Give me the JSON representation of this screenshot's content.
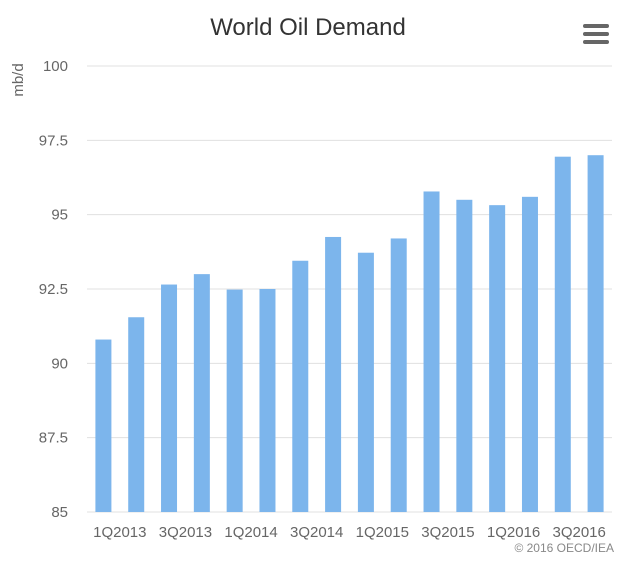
{
  "chart_data": {
    "type": "bar",
    "title": "World Oil Demand",
    "ylabel": "mb/d",
    "xlabel": "",
    "ylim": [
      85,
      100
    ],
    "yticks": [
      85,
      87.5,
      90,
      92.5,
      95,
      97.5,
      100
    ],
    "categories": [
      "1Q2013",
      "2Q2013",
      "3Q2013",
      "4Q2013",
      "1Q2014",
      "2Q2014",
      "3Q2014",
      "4Q2014",
      "1Q2015",
      "2Q2015",
      "3Q2015",
      "4Q2015",
      "1Q2016",
      "2Q2016",
      "3Q2016",
      "4Q2016"
    ],
    "xtick_labels": [
      "1Q2013",
      "3Q2013",
      "1Q2014",
      "3Q2014",
      "1Q2015",
      "3Q2015",
      "1Q2016",
      "3Q2016"
    ],
    "values": [
      90.8,
      91.55,
      92.65,
      93.0,
      92.48,
      92.5,
      93.45,
      94.25,
      93.72,
      94.2,
      95.78,
      95.5,
      95.32,
      95.6,
      96.95,
      97.0
    ],
    "bar_color": "#7cb5ec",
    "grid": true,
    "legend": "none"
  },
  "menu": {
    "icon": "hamburger-menu-icon"
  },
  "credit": "© 2016 OECD/IEA"
}
